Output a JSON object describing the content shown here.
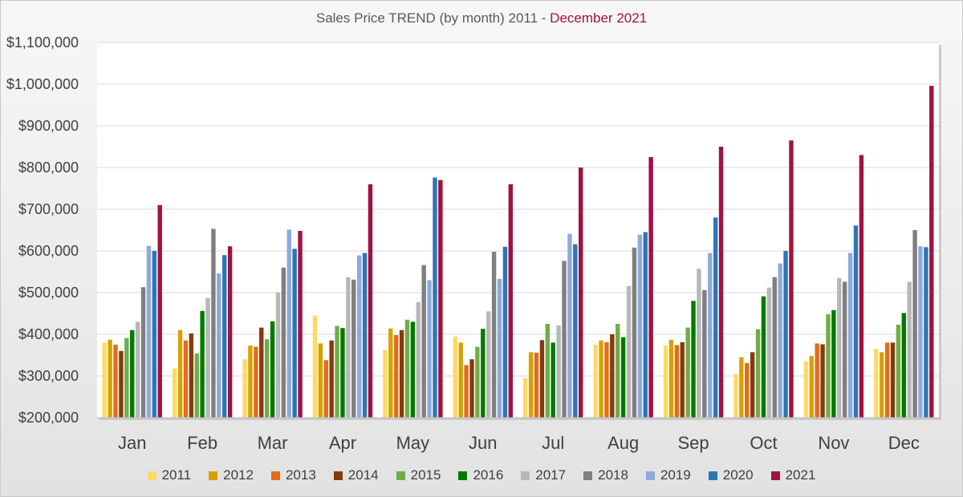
{
  "chart_data": {
    "type": "bar",
    "title": "Sales Price TREND (by month) 2011 - ",
    "title_highlight": "December 2021",
    "title_highlight_color": "#a0123f",
    "categories": [
      "Jan",
      "Feb",
      "Mar",
      "Apr",
      "May",
      "Jun",
      "Jul",
      "Aug",
      "Sep",
      "Oct",
      "Nov",
      "Dec"
    ],
    "ylim": [
      200000,
      1100000
    ],
    "yticks": [
      200000,
      300000,
      400000,
      500000,
      600000,
      700000,
      800000,
      900000,
      1000000,
      1100000
    ],
    "ytick_labels": [
      "$200,000",
      "$300,000",
      "$400,000",
      "$500,000",
      "$600,000",
      "$700,000",
      "$800,000",
      "$900,000",
      "$1,000,000",
      "$1,100,000"
    ],
    "grid": true,
    "legend_position": "bottom",
    "series": [
      {
        "name": "2011",
        "color": "#ffd966",
        "values": [
          380000,
          318000,
          340000,
          445000,
          362000,
          395000,
          295000,
          375000,
          373000,
          305000,
          335000,
          365000
        ]
      },
      {
        "name": "2012",
        "color": "#d6a100",
        "values": [
          387000,
          410000,
          373000,
          378000,
          414000,
          380000,
          357000,
          385000,
          387000,
          345000,
          348000,
          357000
        ]
      },
      {
        "name": "2013",
        "color": "#e46c1a",
        "values": [
          375000,
          385000,
          370000,
          338000,
          398000,
          326000,
          356000,
          381000,
          374000,
          331000,
          378000,
          380000
        ]
      },
      {
        "name": "2014",
        "color": "#843c0c",
        "values": [
          360000,
          402000,
          416000,
          385000,
          410000,
          340000,
          386000,
          400000,
          381000,
          357000,
          376000,
          380000
        ]
      },
      {
        "name": "2015",
        "color": "#70ad47",
        "values": [
          391000,
          354000,
          388000,
          420000,
          435000,
          370000,
          425000,
          425000,
          416000,
          412000,
          448000,
          423000
        ]
      },
      {
        "name": "2016",
        "color": "#007a00",
        "values": [
          410000,
          456000,
          431000,
          415000,
          430000,
          413000,
          380000,
          393000,
          480000,
          491000,
          458000,
          451000
        ]
      },
      {
        "name": "2017",
        "color": "#b7b7b7",
        "values": [
          430000,
          487000,
          500000,
          537000,
          477000,
          455000,
          421000,
          516000,
          557000,
          512000,
          535000,
          526000
        ]
      },
      {
        "name": "2018",
        "color": "#7f7f7f",
        "values": [
          513000,
          653000,
          560000,
          531000,
          566000,
          598000,
          576000,
          608000,
          506000,
          537000,
          526000,
          650000
        ]
      },
      {
        "name": "2019",
        "color": "#8eaadb",
        "values": [
          612000,
          546000,
          651000,
          589000,
          530000,
          533000,
          641000,
          639000,
          595000,
          570000,
          595000,
          611000
        ]
      },
      {
        "name": "2020",
        "color": "#2e75b6",
        "values": [
          600000,
          590000,
          605000,
          595000,
          776000,
          610000,
          616000,
          645000,
          680000,
          600000,
          661000,
          609000
        ]
      },
      {
        "name": "2021",
        "color": "#a0123f",
        "values": [
          710000,
          611000,
          648000,
          760000,
          770000,
          760000,
          800000,
          825000,
          850000,
          865000,
          830000,
          996000
        ]
      }
    ]
  }
}
